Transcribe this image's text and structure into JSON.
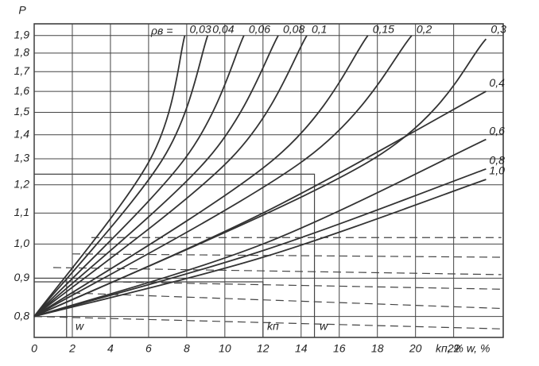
{
  "chart_data": {
    "type": "line",
    "y_label": "P",
    "x_label": "kп, % w, %",
    "rho_label": "ρв =",
    "xlim": [
      0,
      24.6
    ],
    "ylim": [
      0.75,
      1.97
    ],
    "ylog": true,
    "grid": true,
    "xticks": [
      0,
      2,
      4,
      6,
      8,
      10,
      12,
      14,
      16,
      18,
      20,
      22
    ],
    "yticks": [
      {
        "value": 0.8,
        "label": "0,8"
      },
      {
        "value": 0.9,
        "label": "0,9"
      },
      {
        "value": 1.0,
        "label": "1,0"
      },
      {
        "value": 1.1,
        "label": "1,1"
      },
      {
        "value": 1.2,
        "label": "1,2"
      },
      {
        "value": 1.3,
        "label": "1,3"
      },
      {
        "value": 1.4,
        "label": "1,4"
      },
      {
        "value": 1.5,
        "label": "1,5"
      },
      {
        "value": 1.6,
        "label": "1,6"
      },
      {
        "value": 1.7,
        "label": "1,7"
      },
      {
        "value": 1.8,
        "label": "1,8"
      },
      {
        "value": 1.9,
        "label": "1,9"
      }
    ],
    "series": [
      {
        "name": "0,03",
        "color": "#333333",
        "x": [
          0,
          6.1,
          7.9
        ],
        "values": [
          0.8,
          1.3,
          1.9
        ]
      },
      {
        "name": "0,04",
        "color": "#333333",
        "x": [
          0,
          6.75,
          9.1
        ],
        "values": [
          0.8,
          1.3,
          1.9
        ]
      },
      {
        "name": "0,06",
        "color": "#333333",
        "x": [
          0,
          7.9,
          11.0
        ],
        "values": [
          0.8,
          1.3,
          1.9
        ]
      },
      {
        "name": "0,08",
        "color": "#333333",
        "x": [
          0,
          9.1,
          12.8
        ],
        "values": [
          0.8,
          1.3,
          1.9
        ]
      },
      {
        "name": "0,1",
        "color": "#333333",
        "x": [
          0,
          10.3,
          14.3
        ],
        "values": [
          0.8,
          1.3,
          1.9
        ]
      },
      {
        "name": "0,15",
        "color": "#333333",
        "x": [
          0,
          12.6,
          17.5
        ],
        "values": [
          0.8,
          1.3,
          1.9
        ]
      },
      {
        "name": "0,2",
        "color": "#333333",
        "x": [
          0,
          14.25,
          19.8
        ],
        "values": [
          0.8,
          1.3,
          1.9
        ]
      },
      {
        "name": "0,3",
        "color": "#333333",
        "x": [
          0,
          17.8,
          23.7
        ],
        "values": [
          0.8,
          1.3,
          1.88
        ]
      },
      {
        "name": "0,4",
        "color": "#333333",
        "x": [
          0,
          12,
          23.7
        ],
        "values": [
          0.8,
          1.1,
          1.6
        ]
      },
      {
        "name": "0,6",
        "color": "#333333",
        "x": [
          0,
          12,
          23.7
        ],
        "values": [
          0.8,
          1.0,
          1.38
        ]
      },
      {
        "name": "0,8",
        "color": "#333333",
        "x": [
          0,
          12,
          23.7
        ],
        "values": [
          0.8,
          0.98,
          1.26
        ]
      },
      {
        "name": "1,0",
        "color": "#333333",
        "x": [
          0,
          12,
          23.7
        ],
        "values": [
          0.8,
          0.96,
          1.22
        ]
      }
    ],
    "dashed_lines": [
      {
        "x": [
          3,
          24.5
        ],
        "values": [
          1.02,
          1.02
        ]
      },
      {
        "x": [
          2,
          24.5
        ],
        "values": [
          0.97,
          0.96
        ]
      },
      {
        "x": [
          1,
          24.5
        ],
        "values": [
          0.93,
          0.91
        ]
      },
      {
        "x": [
          4,
          24.5
        ],
        "values": [
          0.89,
          0.87
        ]
      },
      {
        "x": [
          2,
          24.5
        ],
        "values": [
          0.86,
          0.82
        ]
      },
      {
        "x": [
          0,
          24.5
        ],
        "values": [
          0.8,
          0.77
        ]
      }
    ],
    "guide_lines": [
      {
        "x": [
          0,
          14.7,
          14.7
        ],
        "values": [
          1.24,
          1.24,
          0.75
        ]
      },
      {
        "x": [
          0,
          12,
          12
        ],
        "values": [
          0.89,
          0.89,
          0.75
        ]
      },
      {
        "x": [
          0,
          8
        ],
        "values": [
          0.9,
          0.9
        ]
      },
      {
        "x": [
          1.7,
          1.7
        ],
        "values": [
          0.9,
          0.75
        ]
      }
    ],
    "annotations": [
      "w",
      "kп",
      "w"
    ]
  }
}
